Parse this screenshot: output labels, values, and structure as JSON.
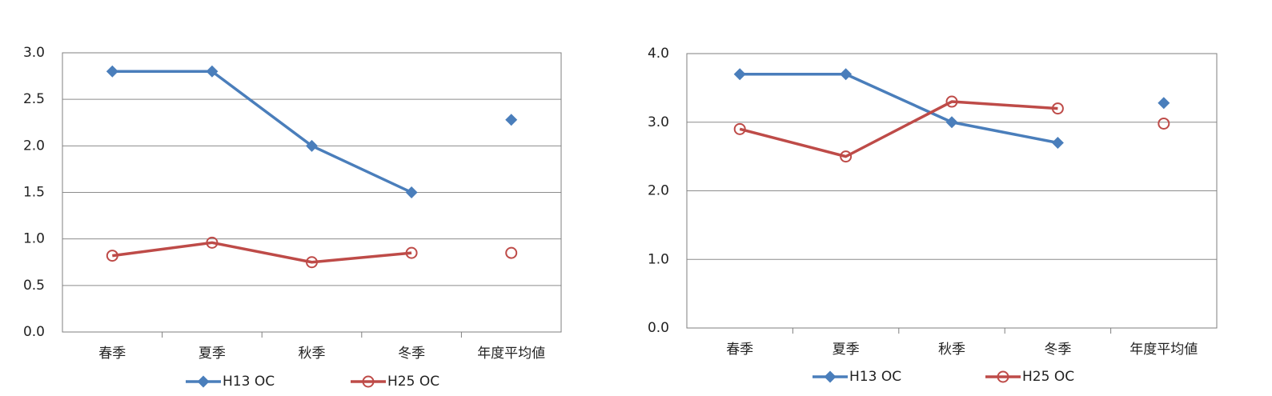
{
  "chart_data": [
    {
      "type": "line",
      "categories": [
        "春季",
        "夏季",
        "秋季",
        "冬季",
        "年度平均値"
      ],
      "series": [
        {
          "name": "H13 OC",
          "color": "#4a7ebb",
          "marker": "diamond",
          "values": [
            2.8,
            2.8,
            2.0,
            1.5,
            2.28
          ]
        },
        {
          "name": "H25 OC",
          "color": "#be4b48",
          "marker": "circle",
          "values": [
            0.82,
            0.96,
            0.75,
            0.85,
            0.85
          ]
        }
      ],
      "separate_last_category": true,
      "ylim": [
        0,
        3
      ],
      "yticks": [
        {
          "value": 0,
          "label": "0.0"
        },
        0.5,
        {
          "value": 1,
          "label": "1.0"
        },
        1.5,
        {
          "value": 2,
          "label": "2.0"
        },
        2.5,
        {
          "value": 3,
          "label": "3.0"
        }
      ],
      "grid": true
    },
    {
      "type": "line",
      "categories": [
        "春季",
        "夏季",
        "秋季",
        "冬季",
        "年度平均値"
      ],
      "series": [
        {
          "name": "H13 OC",
          "color": "#4a7ebb",
          "marker": "diamond",
          "values": [
            3.7,
            3.7,
            3.0,
            2.7,
            3.28
          ]
        },
        {
          "name": "H25 OC",
          "color": "#be4b48",
          "marker": "circle",
          "values": [
            2.9,
            2.5,
            3.3,
            3.2,
            2.98
          ]
        }
      ],
      "separate_last_category": true,
      "ylim": [
        0,
        4
      ],
      "yticks": [
        {
          "value": 0,
          "label": "0.0"
        },
        {
          "value": 1,
          "label": "1.0"
        },
        {
          "value": 2,
          "label": "2.0"
        },
        {
          "value": 3,
          "label": "3.0"
        },
        {
          "value": 4,
          "label": "4.0"
        }
      ],
      "grid": true
    }
  ]
}
